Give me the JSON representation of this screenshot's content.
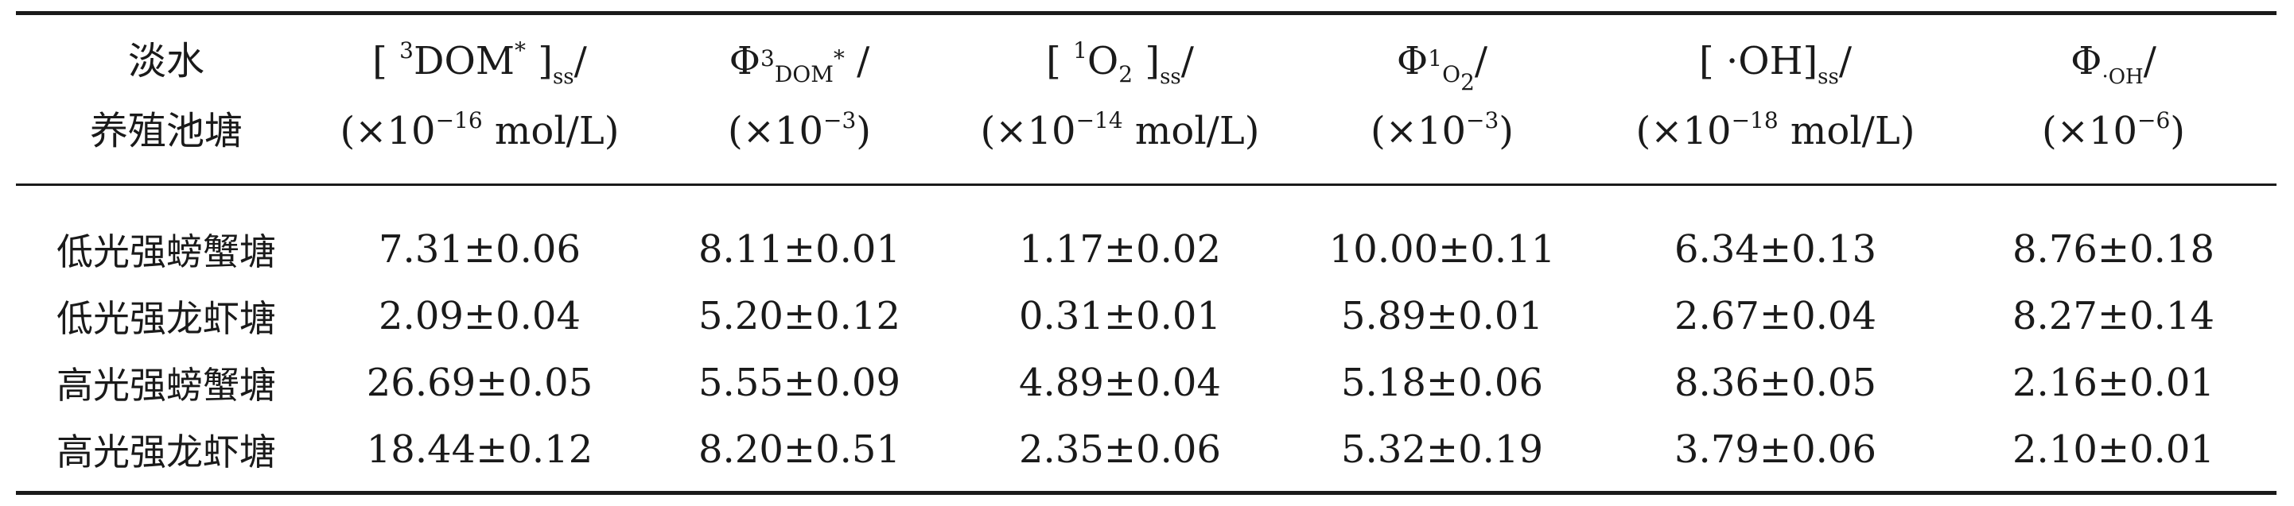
{
  "table": {
    "header": {
      "col0": {
        "line1": "淡水",
        "line2": "养殖池塘"
      },
      "col1": {
        "open": "[",
        "sup": "3",
        "label": "DOM",
        "star": "*",
        "close": "]",
        "sub": "ss",
        "slash": "/",
        "unit_pre": "(×10",
        "exp": "−16",
        "unit_post": " mol/L)"
      },
      "col2": {
        "phi": "Φ",
        "sub_sup": "3",
        "sub": "DOM",
        "star": "*",
        "slash": "/",
        "unit_pre": "(×10",
        "exp": "−3",
        "unit_post": ")"
      },
      "col3": {
        "open": "[",
        "sup": "1",
        "label": "O",
        "sub_num": "2",
        "close": "]",
        "sub": "ss",
        "slash": "/",
        "unit_pre": "(×10",
        "exp": "−14",
        "unit_post": " mol/L)"
      },
      "col4": {
        "phi": "Φ",
        "sub_sup": "1",
        "sub": "O",
        "sub_num": "2",
        "slash": "/",
        "unit_pre": "(×10",
        "exp": "−3",
        "unit_post": ")"
      },
      "col5": {
        "open": "[",
        "label": "·OH",
        "close": "]",
        "sub": "ss",
        "slash": "/",
        "unit_pre": "(×10",
        "exp": "−18",
        "unit_post": " mol/L)"
      },
      "col6": {
        "phi": "Φ",
        "sub": "·OH",
        "slash": "/",
        "unit_pre": "(×10",
        "exp": "−6",
        "unit_post": ")"
      }
    },
    "rows": [
      {
        "name": "低光强螃蟹塘",
        "v1": "7.31±0.06",
        "v2": "8.11±0.01",
        "v3": "1.17±0.02",
        "v4": "10.00±0.11",
        "v5": "6.34±0.13",
        "v6": "8.76±0.18"
      },
      {
        "name": "低光强龙虾塘",
        "v1": "2.09±0.04",
        "v2": "5.20±0.12",
        "v3": "0.31±0.01",
        "v4": "5.89±0.01",
        "v5": "2.67±0.04",
        "v6": "8.27±0.14"
      },
      {
        "name": "高光强螃蟹塘",
        "v1": "26.69±0.05",
        "v2": "5.55±0.09",
        "v3": "4.89±0.04",
        "v4": "5.18±0.06",
        "v5": "8.36±0.05",
        "v6": "2.16±0.01"
      },
      {
        "name": "高光强龙虾塘",
        "v1": "18.44±0.12",
        "v2": "8.20±0.51",
        "v3": "2.35±0.06",
        "v4": "5.32±0.19",
        "v5": "3.79±0.06",
        "v6": "2.10±0.01"
      }
    ]
  }
}
